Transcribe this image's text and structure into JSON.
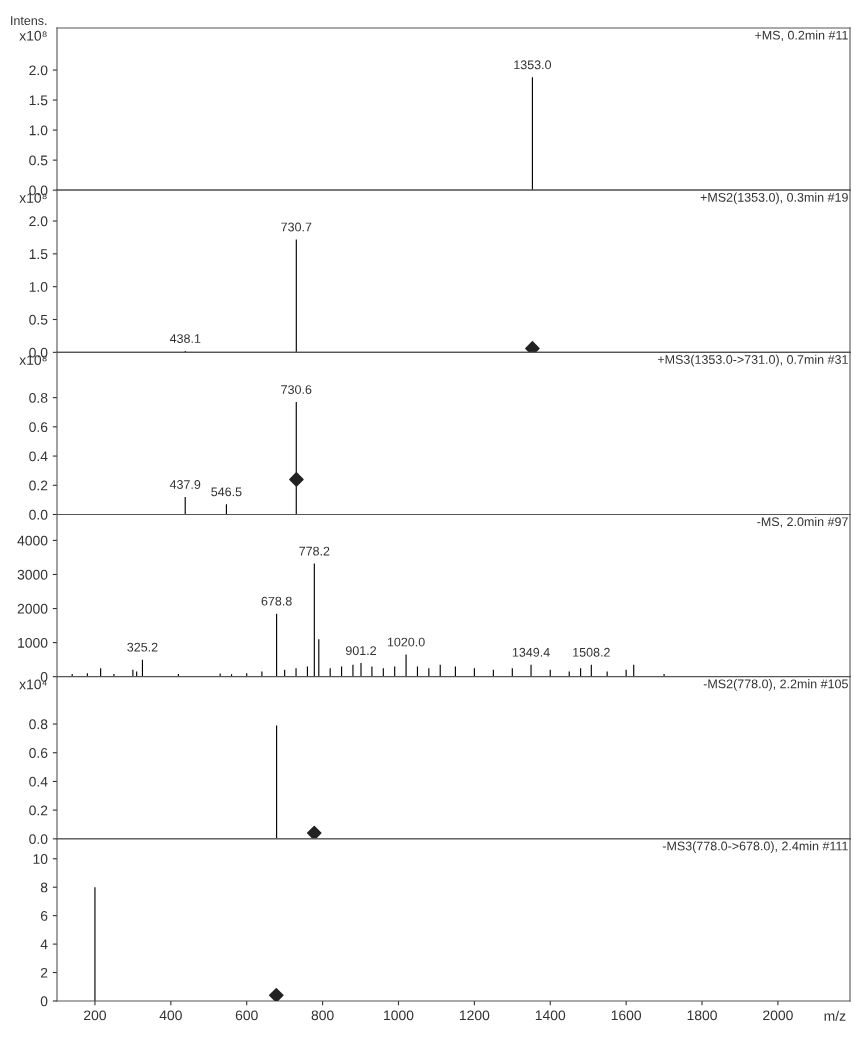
{
  "chart_data": [
    {
      "type": "bar",
      "title": "+MS, 0.2min #11",
      "ylabel": "x10⁸",
      "annotations": [
        "Intens.",
        {
          "text": "1353.0",
          "x": 1353.0,
          "y": 1.88
        }
      ],
      "series": [
        {
          "color": "#000000",
          "x": [
            1353.0
          ],
          "values": [
            1.88
          ]
        }
      ],
      "xlim": [
        100,
        2190
      ],
      "xticks": [
        200,
        400,
        600,
        800,
        1000,
        1200,
        1400,
        1600,
        1800,
        2000
      ],
      "ylim": [
        0,
        2.7
      ],
      "yticks": [
        {
          "value": 0,
          "label": "0.0"
        },
        0.5,
        {
          "value": 1,
          "label": "1.0"
        },
        1.5,
        {
          "value": 2,
          "label": "2.0"
        }
      ],
      "tick_labels": "y"
    },
    {
      "type": "bar",
      "title": "+MS2(1353.0), 0.3min #19",
      "ylabel": "x10⁸",
      "annotations": [
        {
          "text": "730.7",
          "x": 730.7,
          "y": 1.72
        },
        {
          "text": "438.1",
          "x": 438.1,
          "y": 0.02
        }
      ],
      "series": [
        {
          "color": "#000000",
          "x": [
            438.1,
            730.7
          ],
          "values": [
            0.02,
            1.72
          ]
        },
        {
          "type": "scatter",
          "color": "#222222",
          "marker": "diamond",
          "x": [
            1353.0
          ],
          "values": [
            0.06
          ]
        }
      ],
      "xlim": [
        100,
        2190
      ],
      "xticks": [
        200,
        400,
        600,
        800,
        1000,
        1200,
        1400,
        1600,
        1800,
        2000
      ],
      "ylim": [
        0,
        2.47
      ],
      "yticks": [
        {
          "value": 0,
          "label": "0.0"
        },
        0.5,
        {
          "value": 1,
          "label": "1.0"
        },
        1.5,
        {
          "value": 2,
          "label": "2.0"
        }
      ],
      "tick_labels": "y"
    },
    {
      "type": "bar",
      "title": "+MS3(1353.0->731.0), 0.7min #31",
      "ylabel": "x10⁸",
      "annotations": [
        {
          "text": "730.6",
          "x": 730.6,
          "y": 0.77
        },
        {
          "text": "437.9",
          "x": 437.9,
          "y": 0.12
        },
        {
          "text": "546.5",
          "x": 546.5,
          "y": 0.07
        }
      ],
      "series": [
        {
          "color": "#000000",
          "x": [
            437.9,
            546.5,
            730.6
          ],
          "values": [
            0.12,
            0.07,
            0.77
          ]
        },
        {
          "type": "scatter",
          "color": "#222222",
          "marker": "diamond",
          "x": [
            731.0
          ],
          "values": [
            0.24
          ]
        }
      ],
      "xlim": [
        100,
        2190
      ],
      "xticks": [
        200,
        400,
        600,
        800,
        1000,
        1200,
        1400,
        1600,
        1800,
        2000
      ],
      "ylim": [
        0,
        1.11
      ],
      "yticks": [
        {
          "value": 0,
          "label": "0.0"
        },
        0.2,
        0.4,
        0.6,
        0.8
      ],
      "tick_labels": "y"
    },
    {
      "type": "bar",
      "title": "-MS, 2.0min #97",
      "annotations": [
        {
          "text": "778.2",
          "x": 778.2,
          "y": 3320
        },
        {
          "text": "678.8",
          "x": 678.8,
          "y": 1850
        },
        {
          "text": "325.2",
          "x": 325.2,
          "y": 500
        },
        {
          "text": "901.2",
          "x": 901.2,
          "y": 400
        },
        {
          "text": "1020.0",
          "x": 1020.0,
          "y": 650
        },
        {
          "text": "1349.4",
          "x": 1349.4,
          "y": 350
        },
        {
          "text": "1508.2",
          "x": 1508.2,
          "y": 350
        }
      ],
      "series": [
        {
          "color": "#000000",
          "x": [
            140,
            180,
            215,
            250,
            300,
            310,
            325.2,
            420,
            530,
            560,
            600,
            640,
            678.8,
            700,
            730,
            760,
            778.2,
            790,
            820,
            850,
            880,
            901.2,
            930,
            960,
            990,
            1020.0,
            1050,
            1080,
            1110,
            1150,
            1200,
            1250,
            1300,
            1349.4,
            1400,
            1450,
            1480,
            1508.2,
            1550,
            1600,
            1620,
            1700
          ],
          "values": [
            80,
            100,
            250,
            80,
            200,
            150,
            500,
            80,
            90,
            70,
            100,
            150,
            1850,
            200,
            250,
            300,
            3320,
            1100,
            250,
            300,
            350,
            400,
            300,
            250,
            300,
            650,
            300,
            250,
            350,
            300,
            250,
            200,
            250,
            350,
            200,
            150,
            250,
            350,
            150,
            200,
            350,
            80
          ]
        }
      ],
      "xlim": [
        100,
        2190
      ],
      "xticks": [
        200,
        400,
        600,
        800,
        1000,
        1200,
        1400,
        1600,
        1800,
        2000
      ],
      "ylim": [
        0,
        4760
      ],
      "yticks": [
        0,
        1000,
        2000,
        3000,
        4000
      ],
      "tick_labels": "y"
    },
    {
      "type": "bar",
      "title": "-MS2(778.0), 2.2min #105",
      "ylabel": "x10⁴",
      "series": [
        {
          "color": "#000000",
          "x": [
            678.8
          ],
          "values": [
            0.79
          ]
        },
        {
          "type": "scatter",
          "color": "#222222",
          "marker": "diamond",
          "x": [
            778.0
          ],
          "values": [
            0.04
          ]
        }
      ],
      "xlim": [
        100,
        2190
      ],
      "xticks": [
        200,
        400,
        600,
        800,
        1000,
        1200,
        1400,
        1600,
        1800,
        2000
      ],
      "ylim": [
        0,
        1.13
      ],
      "yticks": [
        {
          "value": 0,
          "label": "0.0"
        },
        0.2,
        0.4,
        0.6,
        0.8
      ],
      "tick_labels": "y"
    },
    {
      "type": "bar",
      "title": "-MS3(778.0->678.0), 2.4min #111",
      "xlabel": "m/z",
      "series": [
        {
          "color": "#000000",
          "x": [
            200
          ],
          "values": [
            8.0
          ]
        },
        {
          "type": "scatter",
          "color": "#222222",
          "marker": "diamond",
          "x": [
            678.0
          ],
          "values": [
            0.4
          ]
        }
      ],
      "xlim": [
        100,
        2190
      ],
      "xticks": [
        200,
        400,
        600,
        800,
        1000,
        1200,
        1400,
        1600,
        1800,
        2000
      ],
      "ylim": [
        0,
        11.4
      ],
      "yticks": [
        0,
        2,
        4,
        6,
        8,
        10
      ]
    }
  ]
}
